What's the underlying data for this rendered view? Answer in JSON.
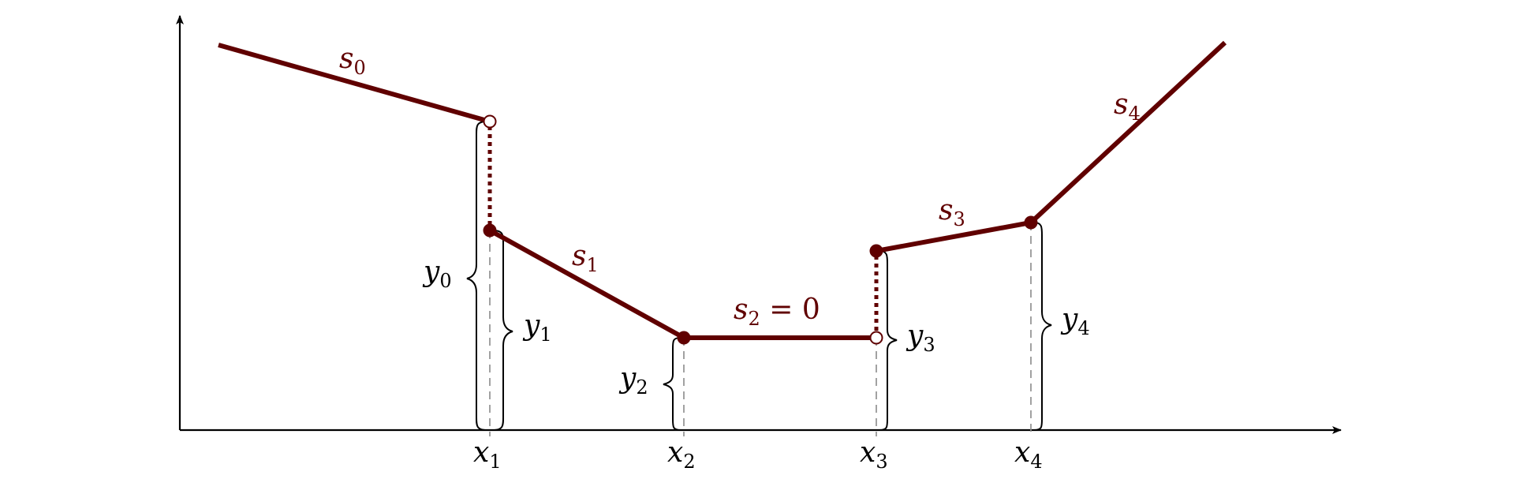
{
  "colors": {
    "segment": "#600000",
    "axis": "#000000",
    "guide": "#8a8a8a"
  },
  "segments": [
    {
      "name": "s",
      "sub": "0",
      "suffix": ""
    },
    {
      "name": "s",
      "sub": "1",
      "suffix": ""
    },
    {
      "name": "s",
      "sub": "2",
      "suffix": " = 0"
    },
    {
      "name": "s",
      "sub": "3",
      "suffix": ""
    },
    {
      "name": "s",
      "sub": "4",
      "suffix": ""
    }
  ],
  "x_labels": [
    {
      "name": "x",
      "sub": "1"
    },
    {
      "name": "x",
      "sub": "2"
    },
    {
      "name": "x",
      "sub": "3"
    },
    {
      "name": "x",
      "sub": "4"
    }
  ],
  "y_labels": [
    {
      "name": "y",
      "sub": "0"
    },
    {
      "name": "y",
      "sub": "1"
    },
    {
      "name": "y",
      "sub": "2"
    },
    {
      "name": "y",
      "sub": "3"
    },
    {
      "name": "y",
      "sub": "4"
    }
  ]
}
